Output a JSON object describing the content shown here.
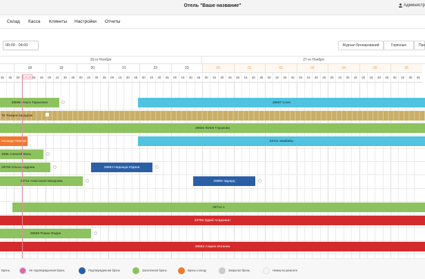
{
  "header": {
    "hotel_title": "Отель \"Ваше название\"",
    "user_label": "Администр"
  },
  "menu": [
    {
      "label": "Склад"
    },
    {
      "label": "Касса"
    },
    {
      "label": "Клиенты"
    },
    {
      "label": "Настройки"
    },
    {
      "label": "Отчеты"
    }
  ],
  "toolbar": {
    "time_value": "00:00 - 04:00",
    "journal_label": "Журнал бронирований",
    "hot_label": "Горячные",
    "cut_label": "Про"
  },
  "timeline": {
    "dates": [
      {
        "label": "26-го Ноября"
      },
      {
        "label": "27-го Ноября"
      }
    ],
    "hours_day1": [
      "",
      "18",
      "19",
      "20",
      "21",
      "22",
      "23"
    ],
    "hours_day2": [
      "00",
      "01",
      "02",
      "03",
      "04",
      "05",
      "06"
    ],
    "minutes": [
      "00",
      "15",
      "30",
      "45"
    ],
    "now_label": "15:25"
  },
  "bookings": [
    {
      "row": 0,
      "label": "28695 Ольга Тарасенко",
      "color": "green"
    },
    {
      "row": 0,
      "label": "28687 Слон",
      "color": "cyan"
    },
    {
      "row": 1,
      "label": "75 Токирон Шукуров",
      "color": "olive"
    },
    {
      "row": 2,
      "label": "28682 Юлия Глушкова",
      "color": "green"
    },
    {
      "row": 3,
      "label": "ександр Павлов",
      "color": "orange"
    },
    {
      "row": 3,
      "label": "28711 Зимбабы",
      "color": "cyan"
    },
    {
      "row": 4,
      "label": "4685 Алексей Валь",
      "color": "green"
    },
    {
      "row": 5,
      "label": "28708 Ольга Бодрова",
      "color": "green"
    },
    {
      "row": 5,
      "label": "28684 Надежда Юдина",
      "color": "blue"
    },
    {
      "row": 6,
      "label": "28712 Анастасия Мазурова",
      "color": "green"
    },
    {
      "row": 6,
      "label": "28689 Эдуард",
      "color": "blue"
    },
    {
      "row": 8,
      "label": "28714 А",
      "color": "green"
    },
    {
      "row": 9,
      "label": "28706 Зураб Асадзанат",
      "color": "red"
    },
    {
      "row": 10,
      "label": "28699 Роман Федин",
      "color": "green"
    },
    {
      "row": 11,
      "label": "28683 Азарин Иоганна",
      "color": "red"
    }
  ],
  "legend": [
    {
      "label": "Бронь",
      "color": "#ffffff"
    },
    {
      "label": "Не подтвержденная бронь",
      "color": "#e066a8"
    },
    {
      "label": "Подтвержденная бронь",
      "color": "#2a5fa6"
    },
    {
      "label": "Заселенная бронь",
      "color": "#8dc35f"
    },
    {
      "label": "Бронь к концу",
      "color": "#f0782c"
    },
    {
      "label": "Закрытая бронь",
      "color": "#cccccc"
    },
    {
      "label": "Номер на ремонте",
      "color": "#f5f5f5"
    }
  ]
}
